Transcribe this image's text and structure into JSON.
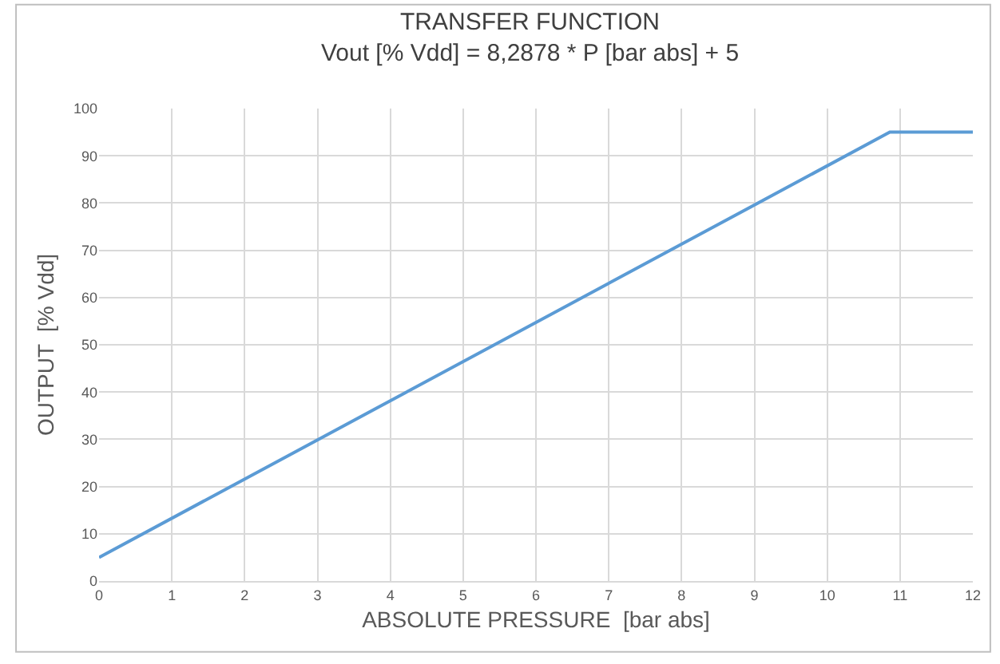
{
  "chart_data": {
    "type": "line",
    "title": "TRANSFER FUNCTION",
    "subtitle": "Vout [% Vdd] = 8,2878 * P [bar abs] + 5",
    "xlabel": "ABSOLUTE PRESSURE  [bar abs]",
    "ylabel": "OUTPUT  [% Vdd]",
    "x": [
      0,
      10.86,
      12
    ],
    "series": [
      {
        "color": "#5b9bd5",
        "values": [
          5,
          95,
          95
        ]
      }
    ],
    "xlim": [
      0,
      12
    ],
    "xticks": [
      0,
      1,
      2,
      3,
      4,
      5,
      6,
      7,
      8,
      9,
      10,
      11,
      12
    ],
    "ylim": [
      0,
      100
    ],
    "yticks": [
      0,
      10,
      20,
      30,
      40,
      50,
      60,
      70,
      80,
      90,
      100
    ],
    "grid": true,
    "marker": "none",
    "line_style": "solid"
  }
}
